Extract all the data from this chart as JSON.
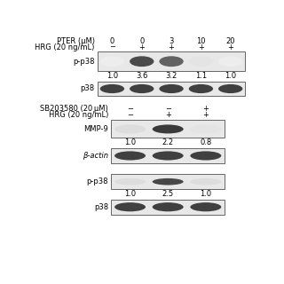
{
  "background_color": "#ffffff",
  "font_size": 6.0,
  "panel1": {
    "header_labels": [
      "PTER (μM)",
      "0",
      "0",
      "3",
      "10",
      "20"
    ],
    "header2_labels": [
      "HRG (20 ng/mL)",
      "−",
      "+",
      "+",
      "+",
      "+"
    ],
    "blot1_label": "p-p38",
    "blot1_values": [
      "1.0",
      "3.6",
      "3.2",
      "1.1",
      "1.0"
    ],
    "blot1_intensities": [
      0.08,
      0.8,
      0.7,
      0.12,
      0.08
    ],
    "blot2_label": "p38",
    "blot2_intensities": [
      0.85,
      0.85,
      0.85,
      0.85,
      0.85
    ],
    "n_lanes": 5
  },
  "panel2": {
    "header_labels": [
      "SB203580 (20 μM)",
      "−",
      "−",
      "+"
    ],
    "header2_labels": [
      "HRG (20 ng/mL)",
      "−",
      "+",
      "+"
    ],
    "blot1_label": "MMP-9",
    "blot1_values": [
      "1.0",
      "2.2",
      "0.8"
    ],
    "blot1_intensities": [
      0.15,
      0.88,
      0.12
    ],
    "blot2_label": "β-actin",
    "blot2_intensities": [
      0.85,
      0.85,
      0.85
    ],
    "blot3_label": "p-p38",
    "blot3_values": [
      "1.0",
      "2.5",
      "1.0"
    ],
    "blot3_intensities": [
      0.15,
      0.82,
      0.15
    ],
    "blot4_label": "p38",
    "blot4_intensities": [
      0.85,
      0.85,
      0.85
    ],
    "n_lanes": 3
  }
}
